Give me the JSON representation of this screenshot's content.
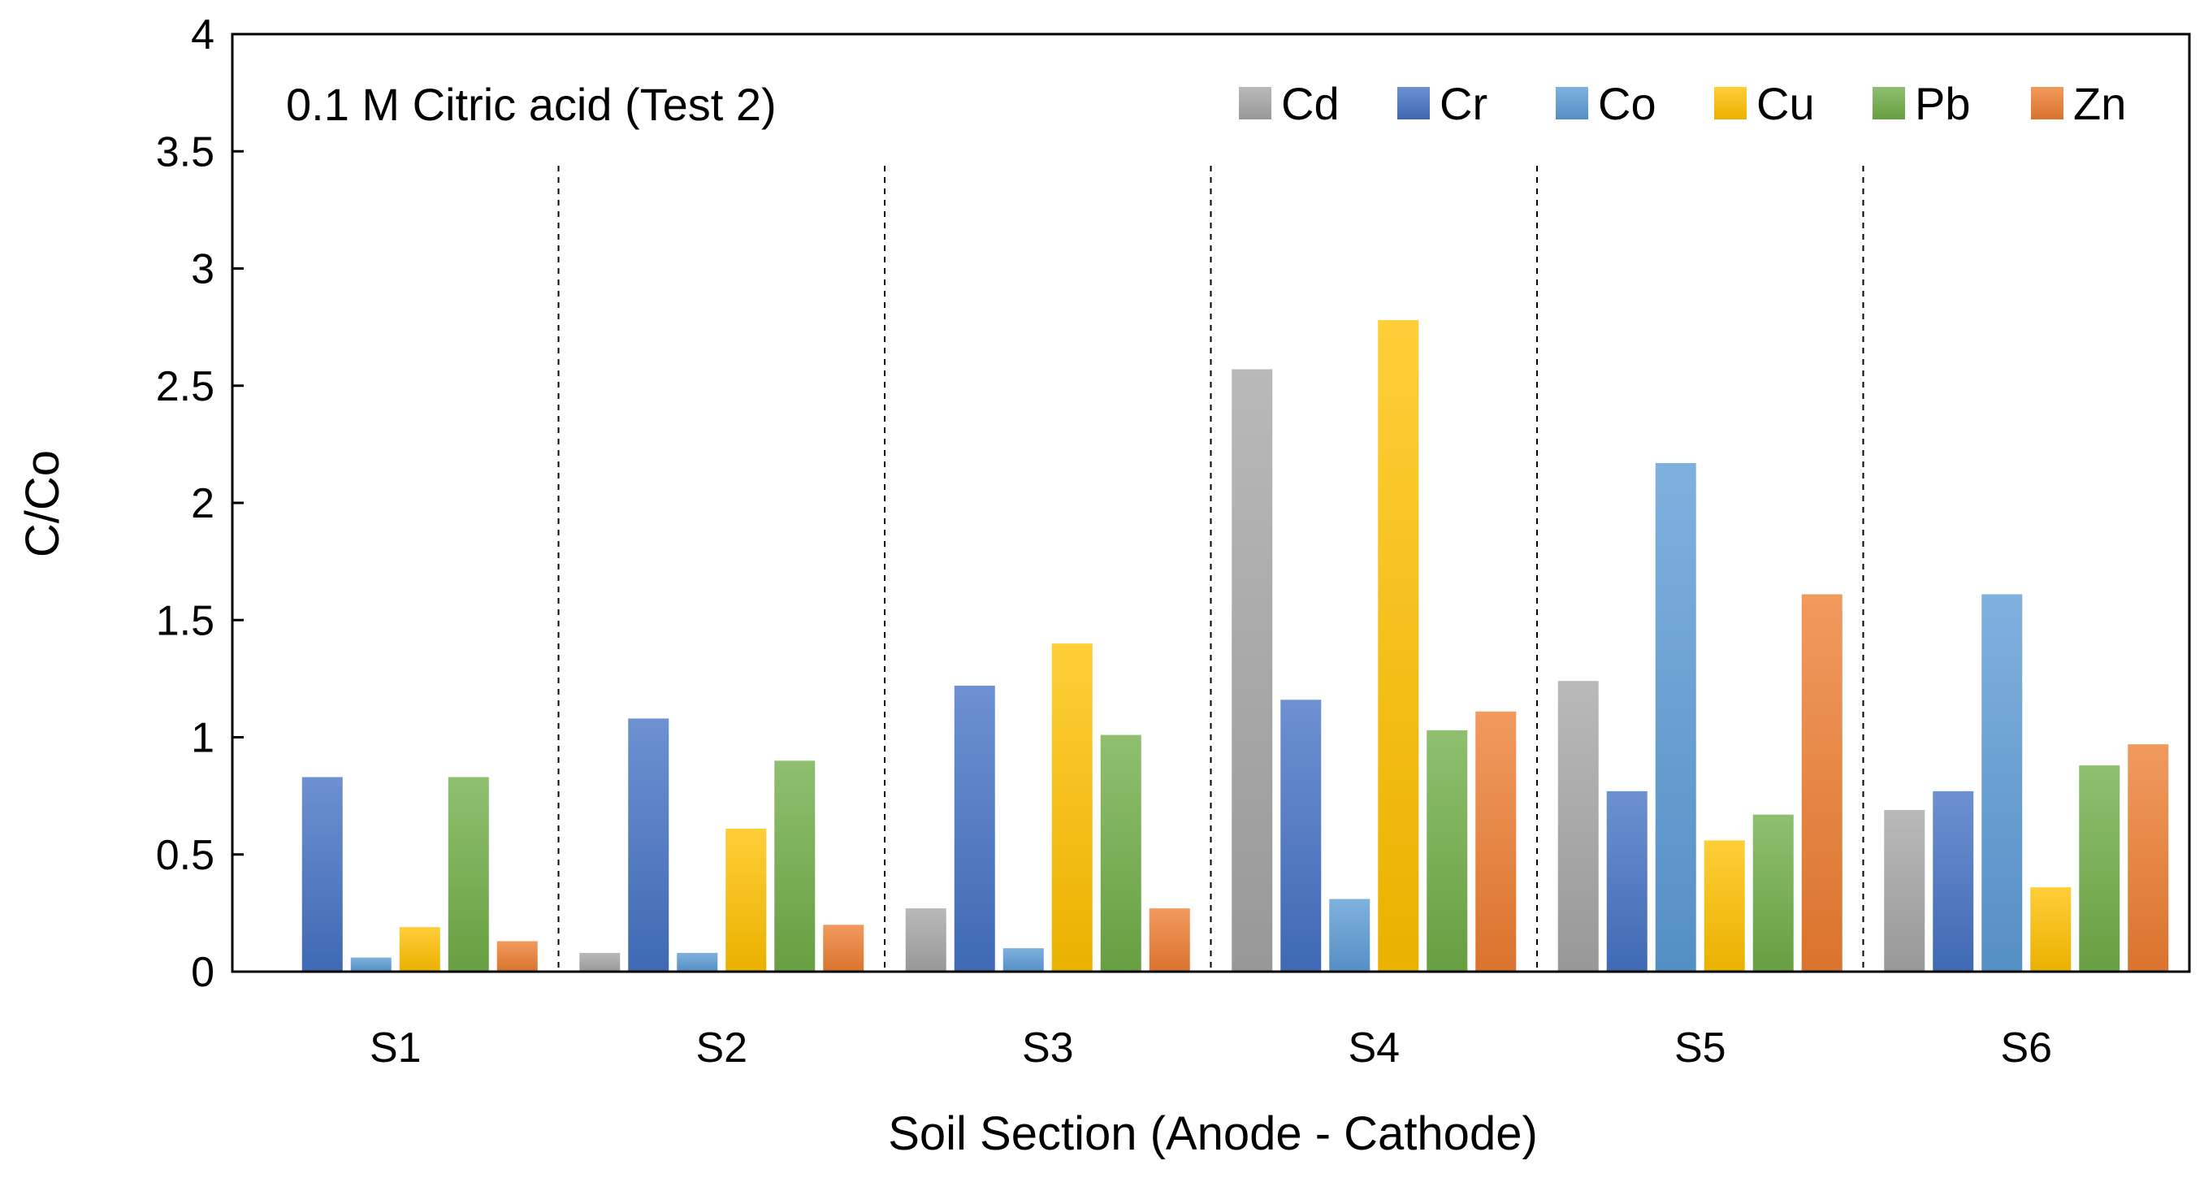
{
  "chart_data": {
    "type": "bar",
    "title": "0.1 M Citric acid (Test 2)",
    "xlabel": "Soil Section (Anode - Cathode)",
    "ylabel": "C/Co",
    "ylim": [
      0,
      4
    ],
    "yticks": [
      "0",
      "0.5",
      "1",
      "1.5",
      "2",
      "2.5",
      "3",
      "3.5",
      "4"
    ],
    "ytick_values": [
      0,
      0.5,
      1,
      1.5,
      2,
      2.5,
      3,
      3.5,
      4
    ],
    "categories": [
      "S1",
      "S2",
      "S3",
      "S4",
      "S5",
      "S6"
    ],
    "legend_position": "top-right",
    "grid": false,
    "section_dividers": "dashed vertical lines between sections",
    "series": [
      {
        "name": "Cd",
        "color": "#a5a5a5",
        "values": [
          0.0,
          0.08,
          0.27,
          2.57,
          1.24,
          0.69
        ]
      },
      {
        "name": "Cr",
        "color": "#4472c4",
        "values": [
          0.83,
          1.08,
          1.22,
          1.16,
          0.77,
          0.77
        ]
      },
      {
        "name": "Co",
        "color": "#5b9bd5",
        "values": [
          0.06,
          0.08,
          0.1,
          0.31,
          2.17,
          1.61
        ]
      },
      {
        "name": "Cu",
        "color": "#ffc000",
        "values": [
          0.19,
          0.61,
          1.4,
          2.78,
          0.56,
          0.36
        ]
      },
      {
        "name": "Pb",
        "color": "#70ad47",
        "values": [
          0.83,
          0.9,
          1.01,
          1.03,
          0.67,
          0.88
        ]
      },
      {
        "name": "Zn",
        "color": "#ed7d31",
        "values": [
          0.13,
          0.2,
          0.27,
          1.11,
          1.61,
          0.97
        ]
      }
    ]
  }
}
